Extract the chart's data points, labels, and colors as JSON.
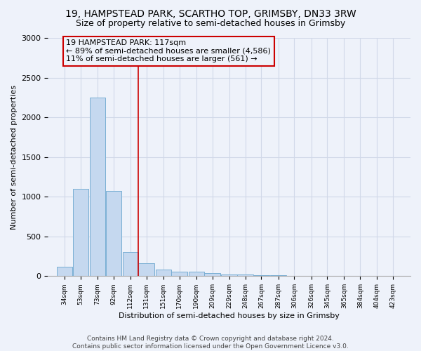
{
  "title": "19, HAMPSTEAD PARK, SCARTHO TOP, GRIMSBY, DN33 3RW",
  "subtitle": "Size of property relative to semi-detached houses in Grimsby",
  "xlabel": "Distribution of semi-detached houses by size in Grimsby",
  "ylabel": "Number of semi-detached properties",
  "bin_labels": [
    "34sqm",
    "53sqm",
    "73sqm",
    "92sqm",
    "112sqm",
    "131sqm",
    "151sqm",
    "170sqm",
    "190sqm",
    "209sqm",
    "229sqm",
    "248sqm",
    "267sqm",
    "287sqm",
    "306sqm",
    "326sqm",
    "345sqm",
    "365sqm",
    "384sqm",
    "404sqm",
    "423sqm"
  ],
  "bin_left": [
    24.5,
    43.5,
    63.5,
    82.5,
    102.5,
    121.5,
    141.5,
    160.5,
    180.5,
    199.5,
    219.5,
    238.5,
    257.5,
    277.5,
    296.5,
    316.5,
    335.5,
    355.5,
    374.5,
    394.5,
    413.5
  ],
  "bin_width": 19,
  "values": [
    120,
    1100,
    2250,
    1070,
    305,
    160,
    85,
    60,
    55,
    40,
    25,
    20,
    15,
    10,
    5,
    5,
    3,
    2,
    1,
    1,
    1
  ],
  "bar_color": "#c5d8ef",
  "bar_edge_color": "#7aafd4",
  "grid_color": "#d0d8e8",
  "bg_color": "#eef2fa",
  "vline_x": 121.5,
  "vline_color": "#cc0000",
  "annotation_text": "19 HAMPSTEAD PARK: 117sqm\n← 89% of semi-detached houses are smaller (4,586)\n11% of semi-detached houses are larger (561) →",
  "annotation_box_color": "#cc0000",
  "ylim": [
    0,
    3000
  ],
  "yticks": [
    0,
    500,
    1000,
    1500,
    2000,
    2500,
    3000
  ],
  "footer": "Contains HM Land Registry data © Crown copyright and database right 2024.\nContains public sector information licensed under the Open Government Licence v3.0.",
  "title_fontsize": 10,
  "subtitle_fontsize": 9,
  "annotation_fontsize": 8,
  "footer_fontsize": 6.5,
  "ylabel_fontsize": 8,
  "xlabel_fontsize": 8
}
